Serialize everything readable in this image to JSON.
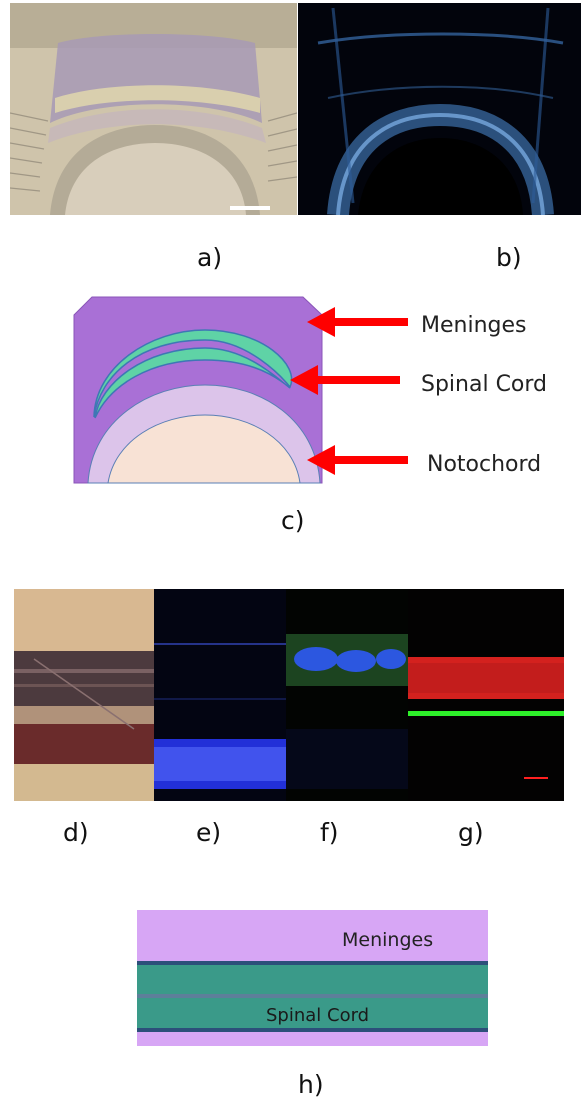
{
  "figure": {
    "panels": {
      "a": {
        "label": "a)"
      },
      "b": {
        "label": "b)"
      },
      "c": {
        "label": "c)"
      },
      "d": {
        "label": "d)"
      },
      "e": {
        "label": "e)"
      },
      "f": {
        "label": "f)"
      },
      "g": {
        "label": "g)"
      },
      "h": {
        "label": "h)"
      }
    },
    "diagram_c": {
      "labels": {
        "meninges": "Meninges",
        "spinal_cord": "Spinal Cord",
        "notochord": "Notochord"
      }
    },
    "diagram_h": {
      "labels": {
        "meninges": "Meninges",
        "spinal_cord": "Spinal Cord"
      }
    },
    "colors": {
      "meninges": "#a970d6",
      "spinal_cord": "#5fd3a6",
      "notochord_outer": "#dcc4ea",
      "notochord_inner": "#f8e2d5",
      "arrow": "#ff0000",
      "h_band": "#3a9a89",
      "h_line": "#2c4f7a",
      "h_meninges": "#d7a6f5"
    }
  }
}
